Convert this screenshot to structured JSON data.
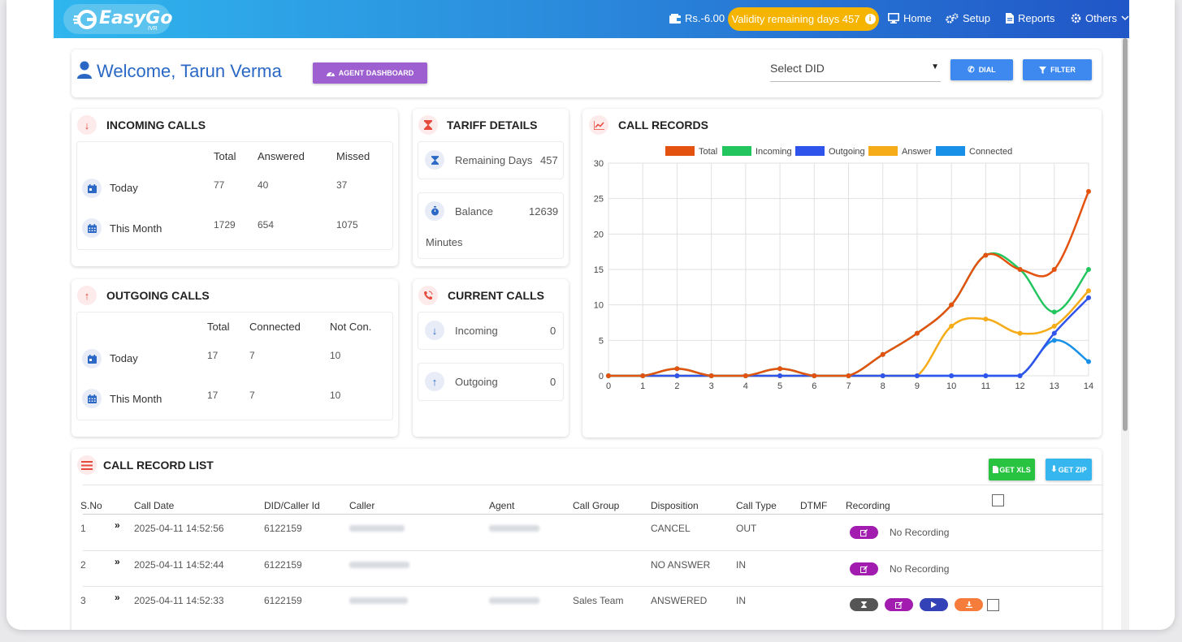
{
  "app": {
    "logo_text": "EasyGo",
    "logo_sub": "IVR"
  },
  "nav": {
    "balance": "Rs.-6.00",
    "validity": "Validity remaining days 457",
    "home": "Home",
    "setup": "Setup",
    "reports": "Reports",
    "others": "Others"
  },
  "header": {
    "welcome": "Welcome, Tarun Verma",
    "agent_dashboard": "AGENT DASHBOARD",
    "select_did": "Select DID",
    "dial": "DIAL",
    "filter": "FILTER"
  },
  "incoming": {
    "title": "INCOMING CALLS",
    "columns": [
      "Total",
      "Answered",
      "Missed"
    ],
    "rows": [
      {
        "label": "Today",
        "values": [
          "77",
          "40",
          "37"
        ]
      },
      {
        "label": "This Month",
        "values": [
          "1729",
          "654",
          "1075"
        ]
      }
    ]
  },
  "outgoing": {
    "title": "OUTGOING CALLS",
    "columns": [
      "Total",
      "Connected",
      "Not Con."
    ],
    "rows": [
      {
        "label": "Today",
        "values": [
          "17",
          "7",
          "10"
        ]
      },
      {
        "label": "This Month",
        "values": [
          "17",
          "7",
          "10"
        ]
      }
    ]
  },
  "tariff": {
    "title": "TARIFF DETAILS",
    "remaining_label": "Remaining Days",
    "remaining_value": "457",
    "balance_label": "Balance",
    "balance_value": "12639",
    "balance_unit": "Minutes"
  },
  "current": {
    "title": "CURRENT CALLS",
    "incoming_label": "Incoming",
    "incoming_value": "0",
    "outgoing_label": "Outgoing",
    "outgoing_value": "0"
  },
  "call_records": {
    "title": "CALL RECORDS"
  },
  "chart_data": {
    "type": "line",
    "title": "",
    "xlabel": "",
    "ylabel": "",
    "x": [
      0,
      1,
      2,
      3,
      4,
      5,
      6,
      7,
      8,
      9,
      10,
      11,
      12,
      13,
      14
    ],
    "ylim": [
      0,
      30
    ],
    "yticks": [
      0,
      5,
      10,
      15,
      20,
      25,
      30
    ],
    "grid": true,
    "legend": "top",
    "series": [
      {
        "name": "Total",
        "color": "#e4520f",
        "values": [
          0,
          0,
          1,
          0,
          0,
          1,
          0,
          0,
          3,
          6,
          10,
          17,
          15,
          15,
          26
        ]
      },
      {
        "name": "Incoming",
        "color": "#22c55e",
        "values": [
          0,
          0,
          1,
          0,
          0,
          1,
          0,
          0,
          3,
          6,
          10,
          17,
          15,
          9,
          15
        ]
      },
      {
        "name": "Outgoing",
        "color": "#2f54eb",
        "values": [
          0,
          0,
          0,
          0,
          0,
          0,
          0,
          0,
          0,
          0,
          0,
          0,
          0,
          6,
          11
        ]
      },
      {
        "name": "Answer",
        "color": "#f5ac18",
        "values": [
          0,
          0,
          0,
          0,
          0,
          0,
          0,
          0,
          0,
          0,
          7,
          8,
          6,
          7,
          12
        ]
      },
      {
        "name": "Connected",
        "color": "#1890e8",
        "values": [
          0,
          0,
          0,
          0,
          0,
          0,
          0,
          0,
          0,
          0,
          0,
          0,
          0,
          5,
          2
        ]
      }
    ]
  },
  "list": {
    "title": "CALL RECORD LIST",
    "get_xls": "GET XLS",
    "get_zip": "GET ZIP",
    "columns": [
      "S.No",
      "Call Date",
      "DID/Caller Id",
      "Caller",
      "Agent",
      "Call Group",
      "Disposition",
      "Call Type",
      "DTMF",
      "Recording"
    ],
    "rows": [
      {
        "sno": "1",
        "date": "2025-04-11 14:52:56",
        "did": "6122159",
        "group": "",
        "disposition": "CANCEL",
        "type": "OUT",
        "recording": "No Recording"
      },
      {
        "sno": "2",
        "date": "2025-04-11 14:52:44",
        "did": "6122159",
        "group": "",
        "disposition": "NO ANSWER",
        "type": "IN",
        "recording": "No Recording"
      },
      {
        "sno": "3",
        "date": "2025-04-11 14:52:33",
        "did": "6122159",
        "group": "Sales Team",
        "disposition": "ANSWERED",
        "type": "IN",
        "recording": ""
      }
    ]
  }
}
